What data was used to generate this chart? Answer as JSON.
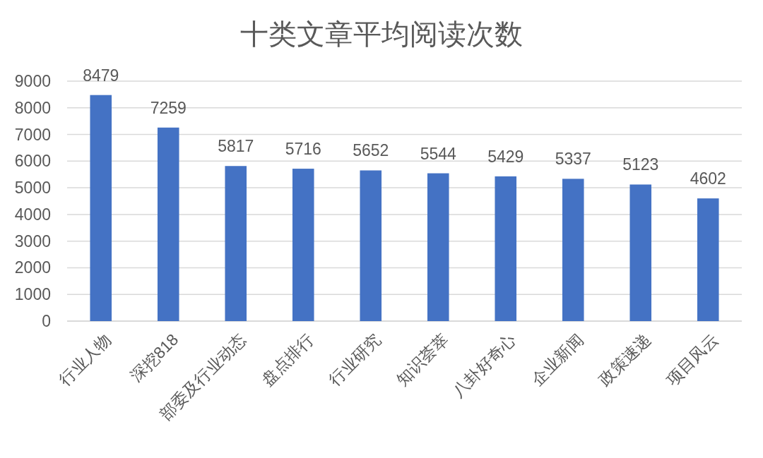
{
  "chart_data": {
    "type": "bar",
    "title": "十类文章平均阅读次数",
    "categories": [
      "行业人物",
      "深挖818",
      "部委及行业动态",
      "盘点排行",
      "行业研究",
      "知识荟萃",
      "八卦好奇心",
      "企业新闻",
      "政策速递",
      "项目风云"
    ],
    "values": [
      8479,
      7259,
      5817,
      5716,
      5652,
      5544,
      5429,
      5337,
      5123,
      4602
    ],
    "color": "#4472c4",
    "ylim": [
      0,
      9000
    ],
    "yticks": [
      0,
      1000,
      2000,
      3000,
      4000,
      5000,
      6000,
      7000,
      8000,
      9000
    ],
    "grid": "y",
    "data_labels": true
  }
}
